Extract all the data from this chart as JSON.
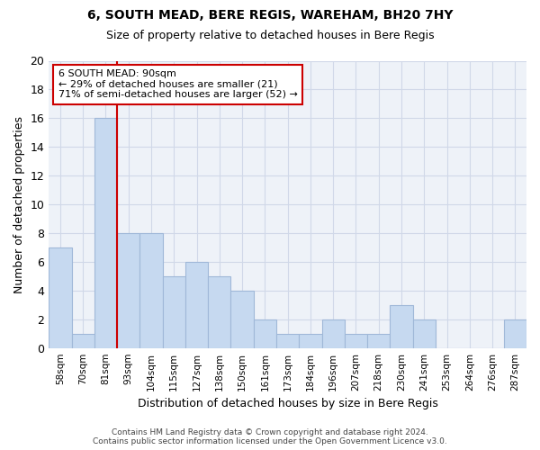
{
  "title": "6, SOUTH MEAD, BERE REGIS, WAREHAM, BH20 7HY",
  "subtitle": "Size of property relative to detached houses in Bere Regis",
  "xlabel": "Distribution of detached houses by size in Bere Regis",
  "ylabel": "Number of detached properties",
  "bar_labels": [
    "58sqm",
    "70sqm",
    "81sqm",
    "93sqm",
    "104sqm",
    "115sqm",
    "127sqm",
    "138sqm",
    "150sqm",
    "161sqm",
    "173sqm",
    "184sqm",
    "196sqm",
    "207sqm",
    "218sqm",
    "230sqm",
    "241sqm",
    "253sqm",
    "264sqm",
    "276sqm",
    "287sqm"
  ],
  "bar_values": [
    7,
    1,
    16,
    8,
    8,
    5,
    6,
    5,
    4,
    2,
    1,
    1,
    2,
    1,
    1,
    3,
    2,
    0,
    0,
    0,
    2
  ],
  "bar_color": "#c6d9f0",
  "bar_edgecolor": "#a0b8d8",
  "vline_color": "#cc0000",
  "annotation_text": "6 SOUTH MEAD: 90sqm\n← 29% of detached houses are smaller (21)\n71% of semi-detached houses are larger (52) →",
  "annotation_box_color": "#cc0000",
  "ylim": [
    0,
    20
  ],
  "yticks": [
    0,
    2,
    4,
    6,
    8,
    10,
    12,
    14,
    16,
    18,
    20
  ],
  "grid_color": "#d0d8e8",
  "background_color": "#eef2f8",
  "footer": "Contains HM Land Registry data © Crown copyright and database right 2024.\nContains public sector information licensed under the Open Government Licence v3.0."
}
